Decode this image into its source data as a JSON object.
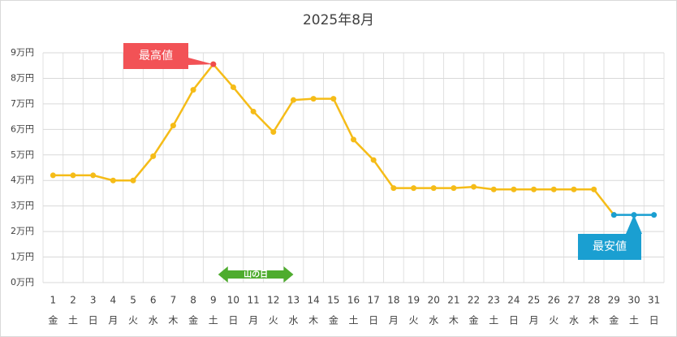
{
  "chart_data": {
    "type": "line",
    "title": "2025年8月",
    "categories": [
      "1",
      "2",
      "3",
      "4",
      "5",
      "6",
      "7",
      "8",
      "9",
      "10",
      "11",
      "12",
      "13",
      "14",
      "15",
      "16",
      "17",
      "18",
      "19",
      "20",
      "21",
      "22",
      "23",
      "24",
      "25",
      "26",
      "27",
      "28",
      "29",
      "30",
      "31"
    ],
    "weekdays": [
      "金",
      "土",
      "日",
      "月",
      "火",
      "水",
      "木",
      "金",
      "土",
      "日",
      "月",
      "火",
      "水",
      "木",
      "金",
      "土",
      "日",
      "月",
      "火",
      "水",
      "木",
      "金",
      "土",
      "日",
      "月",
      "火",
      "水",
      "木",
      "金",
      "土",
      "日"
    ],
    "series": [
      {
        "color": "#f5bc18",
        "values": [
          4.2,
          4.2,
          4.2,
          4.0,
          4.0,
          4.95,
          6.15,
          7.55,
          8.55,
          7.65,
          6.7,
          5.9,
          7.15,
          7.2,
          7.2,
          5.6,
          4.8,
          3.7,
          3.7,
          3.7,
          3.7,
          3.75,
          3.65,
          3.65,
          3.65,
          3.65,
          3.65,
          3.65,
          2.65,
          null,
          null
        ]
      },
      {
        "color": "#1a9fd1",
        "values": [
          null,
          null,
          null,
          null,
          null,
          null,
          null,
          null,
          null,
          null,
          null,
          null,
          null,
          null,
          null,
          null,
          null,
          null,
          null,
          null,
          null,
          null,
          null,
          null,
          null,
          null,
          null,
          null,
          2.65,
          2.65,
          2.65
        ]
      }
    ],
    "ylim": [
      0,
      9
    ],
    "yticks": [
      {
        "value": 0,
        "label": "0万円"
      },
      {
        "value": 1,
        "label": "1万円"
      },
      {
        "value": 2,
        "label": "2万円"
      },
      {
        "value": 3,
        "label": "3万円"
      },
      {
        "value": 4,
        "label": "4万円"
      },
      {
        "value": 5,
        "label": "5万円"
      },
      {
        "value": 6,
        "label": "6万円"
      },
      {
        "value": 7,
        "label": "7万円"
      },
      {
        "value": 8,
        "label": "8万円"
      },
      {
        "value": 9,
        "label": "9万円"
      }
    ],
    "grid": true,
    "annotations": [
      "最高値",
      "最安値",
      "山の日"
    ]
  }
}
